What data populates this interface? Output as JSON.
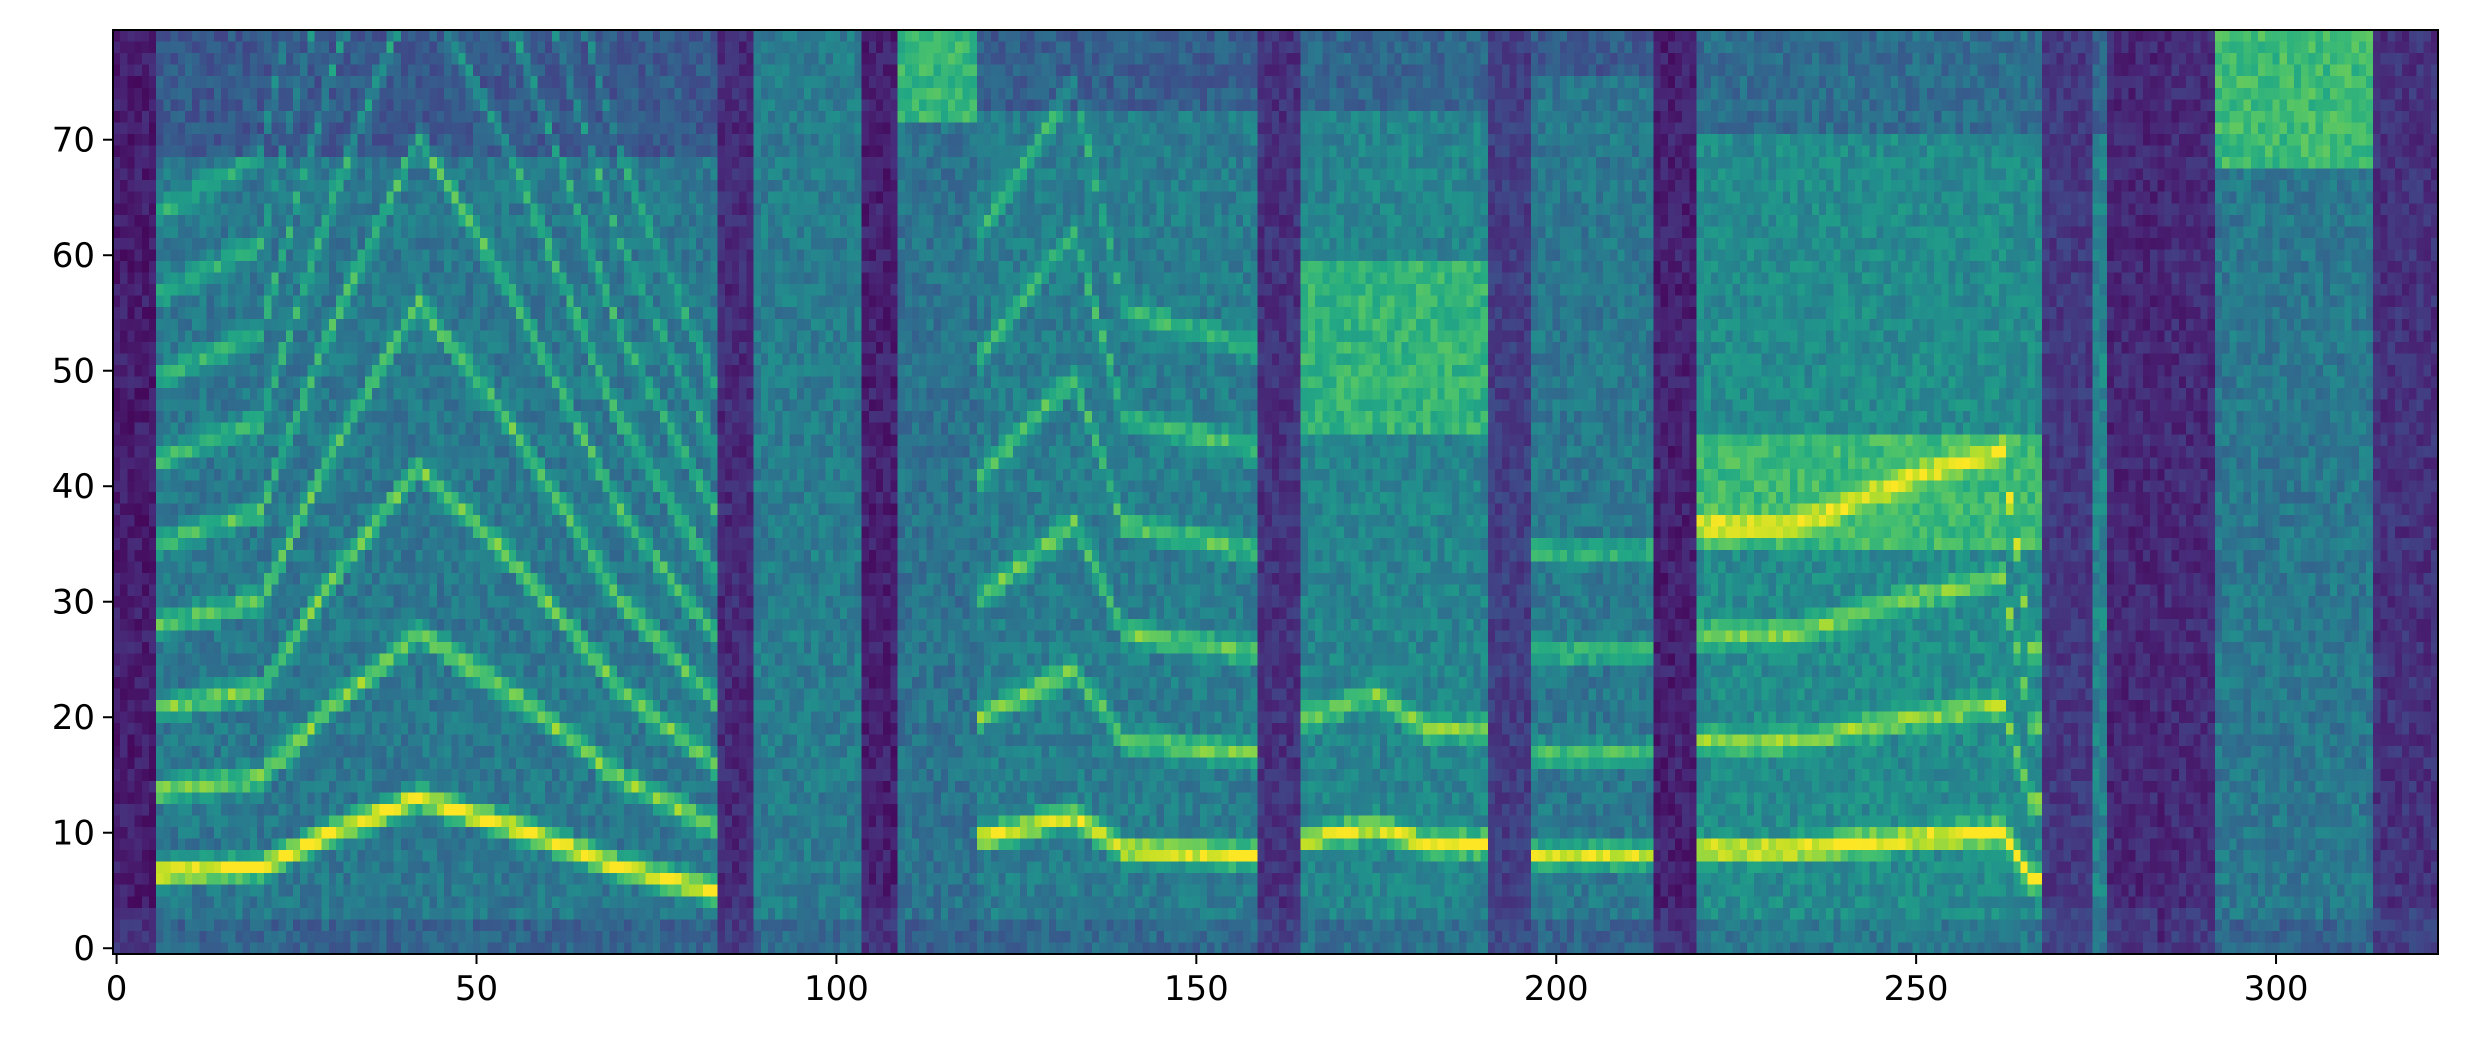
{
  "chart_data": {
    "type": "heatmap",
    "title": "",
    "xlabel": "",
    "ylabel": "",
    "xlim": [
      -0.5,
      322.5
    ],
    "ylim": [
      -0.5,
      79.5
    ],
    "x_ticks": [
      0,
      50,
      100,
      150,
      200,
      250,
      300
    ],
    "y_ticks": [
      0,
      10,
      20,
      30,
      40,
      50,
      60,
      70
    ],
    "grid": false,
    "legend": "none",
    "colormap": "viridis",
    "n_frames": 323,
    "n_bins": 80,
    "value_range": [
      0,
      1
    ],
    "palette": {
      "low": "#440154",
      "mid": "#21918c",
      "high": "#fde725",
      "frame": "#000000",
      "text": "#000000"
    },
    "silences": [
      {
        "x": [
          0,
          6
        ],
        "level": 0.02
      },
      {
        "x": [
          84,
          89
        ],
        "level": 0.06
      },
      {
        "x": [
          104,
          109
        ],
        "level": 0.03
      },
      {
        "x": [
          159,
          165
        ],
        "level": 0.08
      },
      {
        "x": [
          191,
          197
        ],
        "level": 0.12
      },
      {
        "x": [
          214,
          220
        ],
        "level": 0.03
      },
      {
        "x": [
          268,
          275
        ],
        "level": 0.1
      },
      {
        "x": [
          277,
          284
        ],
        "level": 0.05
      },
      {
        "x": [
          285,
          292
        ],
        "level": 0.06
      },
      {
        "x": [
          314,
          323
        ],
        "level": 0.08
      }
    ],
    "segments": [
      {
        "x": [
          6,
          84
        ],
        "base": 0.4,
        "upper_falloff": 68,
        "voiced": true,
        "f0": [
          [
            6,
            6.5
          ],
          [
            20,
            7
          ],
          [
            30,
            10
          ],
          [
            42,
            13
          ],
          [
            55,
            10.5
          ],
          [
            70,
            7
          ],
          [
            83,
            5
          ]
        ],
        "harmonics": 9,
        "strength": 0.95
      },
      {
        "x": [
          89,
          104
        ],
        "base": 0.42,
        "upper_falloff": 80,
        "voiced": false,
        "strength": 0.3
      },
      {
        "x": [
          109,
          120
        ],
        "base": 0.38,
        "upper_falloff": 80,
        "voiced": false,
        "strength": 0.35,
        "top_band": [
          72,
          80
        ]
      },
      {
        "x": [
          120,
          159
        ],
        "base": 0.42,
        "upper_falloff": 72,
        "voiced": true,
        "f0": [
          [
            120,
            9.5
          ],
          [
            133,
            11.5
          ],
          [
            140,
            8.5
          ],
          [
            158,
            8
          ]
        ],
        "harmonics": 6,
        "strength": 0.85
      },
      {
        "x": [
          165,
          191
        ],
        "base": 0.45,
        "upper_falloff": 72,
        "voiced": true,
        "f0": [
          [
            166,
            9.5
          ],
          [
            175,
            10.5
          ],
          [
            182,
            9
          ]
        ],
        "harmonics": 2,
        "strength": 0.8,
        "noise_band": [
          45,
          60
        ]
      },
      {
        "x": [
          197,
          214
        ],
        "base": 0.4,
        "upper_falloff": 75,
        "voiced": true,
        "f0": [
          [
            198,
            8
          ],
          [
            208,
            8
          ]
        ],
        "harmonics": 4,
        "strength": 0.75
      },
      {
        "x": [
          220,
          268
        ],
        "base": 0.48,
        "upper_falloff": 70,
        "voiced": true,
        "f0": [
          [
            233,
            8.5
          ],
          [
            250,
            9.5
          ],
          [
            262,
            10
          ],
          [
            266,
            6
          ]
        ],
        "harmonics": 4,
        "strength": 0.85,
        "noise_band": [
          35,
          45
        ]
      },
      {
        "x": [
          275,
          277
        ],
        "base": 0.45,
        "upper_falloff": 70,
        "voiced": false,
        "strength": 0.4
      },
      {
        "x": [
          292,
          314
        ],
        "base": 0.4,
        "upper_falloff": 80,
        "voiced": false,
        "strength": 0.35,
        "top_band": [
          68,
          80
        ]
      }
    ]
  }
}
